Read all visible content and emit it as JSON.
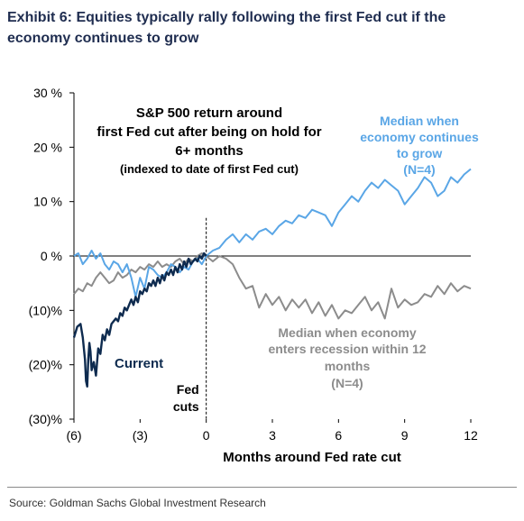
{
  "header": {
    "title": "Exhibit 6: Equities typically rally following the first Fed cut if the economy continues to grow"
  },
  "footer": {
    "source": "Source: Goldman Sachs Global Investment Research"
  },
  "colors": {
    "current": "#0e2b4f",
    "grow": "#5aa6e6",
    "recession": "#8c8c8c",
    "title": "#1f2d50"
  },
  "chart_data": {
    "type": "line",
    "title_lines": [
      "S&P 500 return around",
      "first Fed cut after being on hold for",
      "6+ months",
      "(indexed to date of first Fed cut)"
    ],
    "xlabel": "Months around Fed rate cut",
    "ylabel": "",
    "xlim": [
      -6,
      12
    ],
    "ylim": [
      -30,
      30
    ],
    "x_ticks": [
      -6,
      -3,
      0,
      3,
      6,
      9,
      12
    ],
    "x_tick_labels": [
      "(6)",
      "(3)",
      "0",
      "3",
      "6",
      "9",
      "12"
    ],
    "y_ticks": [
      30,
      20,
      10,
      0,
      -10,
      -20,
      -30
    ],
    "y_tick_labels": [
      "30 %",
      "20 %",
      "10 %",
      "0 %",
      "(10)%",
      "(20)%",
      "(30)%"
    ],
    "grid": false,
    "vline": {
      "x": 0,
      "label_lines": [
        "Fed",
        "cuts"
      ]
    },
    "series": [
      {
        "name": "Current",
        "color": "#0e2b4f",
        "label_lines": [
          "Current"
        ],
        "x": [
          -6.0,
          -5.85,
          -5.7,
          -5.6,
          -5.5,
          -5.45,
          -5.4,
          -5.35,
          -5.3,
          -5.25,
          -5.2,
          -5.1,
          -5.0,
          -4.9,
          -4.8,
          -4.7,
          -4.6,
          -4.5,
          -4.4,
          -4.3,
          -4.2,
          -4.1,
          -4.0,
          -3.9,
          -3.8,
          -3.7,
          -3.6,
          -3.5,
          -3.4,
          -3.3,
          -3.2,
          -3.1,
          -3.0,
          -2.9,
          -2.8,
          -2.7,
          -2.6,
          -2.5,
          -2.4,
          -2.3,
          -2.2,
          -2.1,
          -2.0,
          -1.9,
          -1.8,
          -1.7,
          -1.6,
          -1.5,
          -1.4,
          -1.3,
          -1.2,
          -1.1,
          -1.0,
          -0.9,
          -0.8,
          -0.7,
          -0.6,
          -0.5,
          -0.4,
          -0.3,
          -0.2,
          -0.1,
          0.0
        ],
        "y": [
          -15,
          -13,
          -12.5,
          -15,
          -19,
          -23,
          -24,
          -19,
          -16,
          -17.5,
          -21,
          -19.5,
          -22,
          -17,
          -18,
          -14.5,
          -15.5,
          -13.5,
          -14.5,
          -12.5,
          -12,
          -11.5,
          -12,
          -10.5,
          -11,
          -9.5,
          -10,
          -9,
          -8,
          -9,
          -7.5,
          -8.5,
          -6.5,
          -7,
          -6,
          -6.5,
          -5,
          -5.5,
          -4.5,
          -5.5,
          -4,
          -5,
          -3.5,
          -4.5,
          -3,
          -3.5,
          -2.5,
          -3.5,
          -2,
          -3,
          -1.5,
          -2.5,
          -1,
          -2,
          -0.5,
          -1.5,
          -1,
          -0.5,
          -1,
          0,
          -0.5,
          0.5,
          0
        ]
      },
      {
        "name": "Median when economy continues to grow (N=4)",
        "color": "#5aa6e6",
        "label_lines": [
          "Median when",
          "economy continues",
          "to grow",
          "(N=4)"
        ],
        "x": [
          -6.0,
          -5.8,
          -5.6,
          -5.4,
          -5.2,
          -5.0,
          -4.8,
          -4.6,
          -4.4,
          -4.2,
          -4.0,
          -3.8,
          -3.6,
          -3.4,
          -3.2,
          -3.0,
          -2.8,
          -2.6,
          -2.4,
          -2.2,
          -2.0,
          -1.8,
          -1.6,
          -1.4,
          -1.2,
          -1.0,
          -0.8,
          -0.6,
          -0.4,
          -0.2,
          0.0,
          0.3,
          0.6,
          0.9,
          1.2,
          1.5,
          1.8,
          2.1,
          2.4,
          2.7,
          3.0,
          3.3,
          3.6,
          3.9,
          4.2,
          4.5,
          4.8,
          5.1,
          5.4,
          5.7,
          6.0,
          6.3,
          6.6,
          6.9,
          7.2,
          7.5,
          7.8,
          8.1,
          8.4,
          8.7,
          9.0,
          9.3,
          9.6,
          9.9,
          10.2,
          10.5,
          10.8,
          11.1,
          11.4,
          11.7,
          12.0
        ],
        "y": [
          0,
          0.5,
          -1.5,
          -0.5,
          1,
          -0.5,
          0.5,
          -1.5,
          -2.5,
          -1,
          -1.5,
          -3,
          -1.5,
          -4,
          -7.5,
          -4,
          -6,
          -2,
          -2.5,
          -3.5,
          -4,
          -3,
          -1.5,
          -2,
          -3,
          -2,
          -2.5,
          -1,
          -0.5,
          -1.5,
          0,
          1,
          1.5,
          3,
          4,
          2.5,
          4,
          3,
          4.5,
          5,
          4,
          5.5,
          6.5,
          6,
          7.5,
          7,
          8.5,
          8,
          7.5,
          5.5,
          8,
          9.5,
          11,
          10,
          12,
          13.5,
          12.5,
          14,
          13,
          12,
          9.5,
          11,
          12.5,
          14.5,
          13.5,
          11,
          12,
          14.5,
          13.5,
          15,
          16
        ]
      },
      {
        "name": "Median when economy enters recession within 12 months (N=4)",
        "color": "#8c8c8c",
        "label_lines": [
          "Median when economy",
          "enters recession within 12",
          "months",
          "(N=4)"
        ],
        "x": [
          -6.0,
          -5.8,
          -5.6,
          -5.4,
          -5.2,
          -5.0,
          -4.8,
          -4.6,
          -4.4,
          -4.2,
          -4.0,
          -3.8,
          -3.6,
          -3.4,
          -3.2,
          -3.0,
          -2.8,
          -2.6,
          -2.4,
          -2.2,
          -2.0,
          -1.8,
          -1.6,
          -1.4,
          -1.2,
          -1.0,
          -0.8,
          -0.6,
          -0.4,
          -0.2,
          0.0,
          0.3,
          0.6,
          0.9,
          1.2,
          1.5,
          1.8,
          2.1,
          2.4,
          2.7,
          3.0,
          3.3,
          3.6,
          3.9,
          4.2,
          4.5,
          4.8,
          5.1,
          5.4,
          5.7,
          6.0,
          6.3,
          6.6,
          6.9,
          7.2,
          7.5,
          7.8,
          8.1,
          8.4,
          8.7,
          9.0,
          9.3,
          9.6,
          9.9,
          10.2,
          10.5,
          10.8,
          11.1,
          11.4,
          11.7,
          12.0
        ],
        "y": [
          -7,
          -6,
          -6.5,
          -5,
          -5.5,
          -4,
          -3,
          -4,
          -5,
          -4.5,
          -3,
          -4,
          -3.5,
          -2.5,
          -3,
          -2,
          -2.5,
          -1.5,
          -2,
          -1,
          -2,
          -1.5,
          -2,
          -1,
          -0.5,
          -1.5,
          -0.5,
          -1,
          0,
          0.5,
          0,
          -1,
          0,
          -0.5,
          -1.5,
          -4,
          -6,
          -5.5,
          -9.5,
          -7,
          -9,
          -7.5,
          -10,
          -8,
          -9.5,
          -8,
          -10.5,
          -8.5,
          -11,
          -9,
          -11.5,
          -10,
          -10.5,
          -9,
          -7.5,
          -10,
          -8.5,
          -11.5,
          -6,
          -9.5,
          -8,
          -9,
          -8.5,
          -7,
          -7.5,
          -5.5,
          -7,
          -5,
          -6.5,
          -5.5,
          -6
        ]
      }
    ]
  }
}
